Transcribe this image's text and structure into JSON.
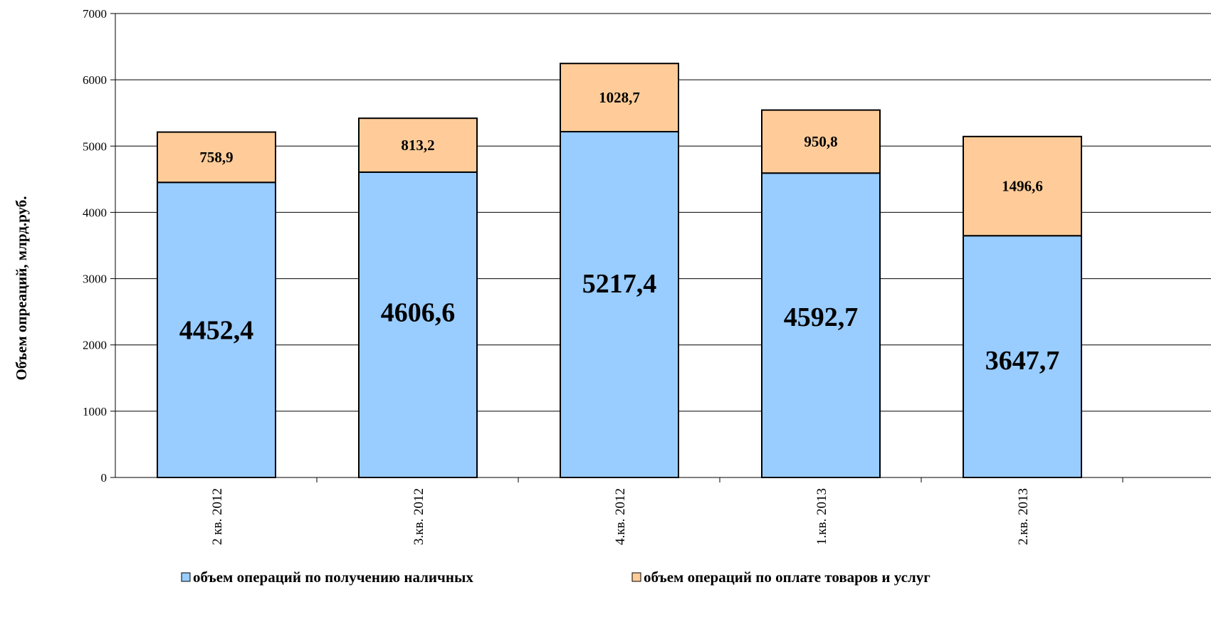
{
  "chart_data": {
    "type": "bar",
    "stacked": true,
    "categories": [
      "2 кв. 2012",
      "3.кв. 2012",
      "4.кв. 2012",
      "1.кв. 2013",
      "2.кв. 2013"
    ],
    "series": [
      {
        "name": "объем операций по получению наличных",
        "values": [
          4452.4,
          4606.6,
          5217.4,
          4592.7,
          3647.7
        ],
        "labels": [
          "4452,4",
          "4606,6",
          "5217,4",
          "4592,7",
          "3647,7"
        ],
        "color": "#99ccff"
      },
      {
        "name": "объем операций по оплате товаров и услуг",
        "values": [
          758.9,
          813.2,
          1028.7,
          950.8,
          1496.6
        ],
        "labels": [
          "758,9",
          "813,2",
          "1028,7",
          "950,8",
          "1496,6"
        ],
        "color": "#ffcc99"
      }
    ],
    "ylabel": "Объем опреаций, млрд.руб.",
    "xlabel": "",
    "ylim": [
      0,
      7000
    ],
    "yticks": [
      0,
      1000,
      2000,
      3000,
      4000,
      5000,
      6000,
      7000
    ],
    "grid": true,
    "legend": "bottom"
  }
}
